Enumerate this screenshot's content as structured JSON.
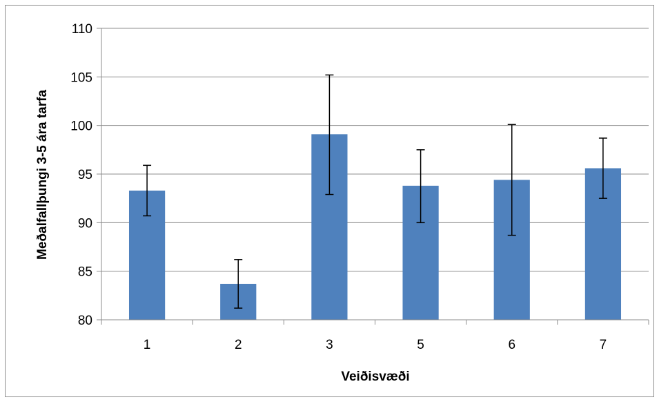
{
  "chart_data": {
    "type": "bar",
    "title": "",
    "xlabel": "Veiðisvæði",
    "ylabel": "Meðalfallþungi 3-5 ára tarfa",
    "categories": [
      "1",
      "2",
      "3",
      "5",
      "6",
      "7"
    ],
    "values": [
      93.3,
      83.7,
      99.1,
      93.8,
      94.4,
      95.6
    ],
    "error_low": [
      90.7,
      81.2,
      92.9,
      90.0,
      88.7,
      92.5
    ],
    "error_high": [
      95.9,
      86.2,
      105.2,
      97.5,
      100.1,
      98.7
    ],
    "ylim": [
      80,
      110
    ],
    "yticks": [
      "80",
      "85",
      "90",
      "95",
      "100",
      "105",
      "110"
    ],
    "grid": true,
    "legend": "none",
    "bar_color": "#4f81bd"
  }
}
